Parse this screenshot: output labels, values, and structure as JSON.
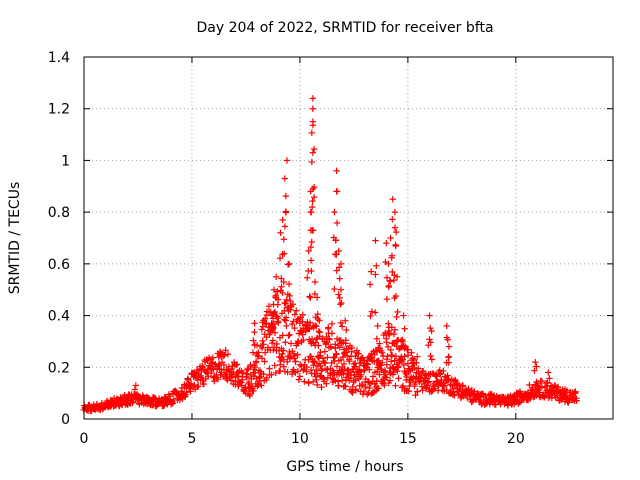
{
  "chart_data": {
    "type": "scatter",
    "title": "Day 204 of 2022, SRMTID for receiver bfta",
    "xlabel": "GPS time / hours",
    "ylabel": "SRMTID / TECUs",
    "xlim": [
      0,
      24.5
    ],
    "ylim": [
      0,
      1.4
    ],
    "xticks": [
      0,
      5,
      10,
      15,
      20
    ],
    "xtick_labels": [
      "0",
      "5",
      "10",
      "15",
      "20"
    ],
    "yticks": [
      0,
      0.2,
      0.4,
      0.6,
      0.8,
      1.0,
      1.2,
      1.4
    ],
    "ytick_labels": [
      "0",
      "0.2",
      "0.4",
      "0.6",
      "0.8",
      "1",
      "1.2",
      "1.4"
    ],
    "grid": true,
    "marker": "plus",
    "series": [
      {
        "name": "SRMTID",
        "color": "#ff0000",
        "profile_x": [
          0,
          0.5,
          1,
          1.5,
          2,
          2.5,
          3,
          3.5,
          4,
          4.5,
          5,
          5.5,
          6,
          6.5,
          7,
          7.5,
          8,
          8.5,
          9,
          9.5,
          10,
          10.5,
          11,
          11.5,
          12,
          12.5,
          13,
          13.5,
          14,
          14.5,
          15,
          15.5,
          16,
          16.5,
          17,
          17.5,
          18,
          18.5,
          19,
          19.5,
          20,
          20.5,
          21,
          21.5,
          22,
          22.5,
          22.8
        ],
        "profile_y": [
          0.04,
          0.04,
          0.05,
          0.06,
          0.07,
          0.07,
          0.06,
          0.06,
          0.07,
          0.09,
          0.13,
          0.16,
          0.18,
          0.2,
          0.16,
          0.12,
          0.18,
          0.25,
          0.3,
          0.28,
          0.24,
          0.22,
          0.2,
          0.22,
          0.18,
          0.16,
          0.14,
          0.16,
          0.22,
          0.2,
          0.16,
          0.14,
          0.13,
          0.14,
          0.12,
          0.1,
          0.08,
          0.07,
          0.07,
          0.06,
          0.07,
          0.09,
          0.11,
          0.1,
          0.09,
          0.08,
          0.08
        ],
        "peaks": [
          {
            "x": 9.4,
            "y": 1.0
          },
          {
            "x": 9.3,
            "y": 0.93
          },
          {
            "x": 9.2,
            "y": 0.77
          },
          {
            "x": 9.1,
            "y": 0.72
          },
          {
            "x": 8.9,
            "y": 0.55
          },
          {
            "x": 9.5,
            "y": 0.6
          },
          {
            "x": 10.6,
            "y": 1.24
          },
          {
            "x": 10.6,
            "y": 1.2
          },
          {
            "x": 10.6,
            "y": 1.15
          },
          {
            "x": 10.6,
            "y": 1.03
          },
          {
            "x": 10.5,
            "y": 0.88
          },
          {
            "x": 10.5,
            "y": 0.8
          },
          {
            "x": 10.4,
            "y": 0.65
          },
          {
            "x": 10.7,
            "y": 0.53
          },
          {
            "x": 10.8,
            "y": 0.47
          },
          {
            "x": 11.7,
            "y": 0.96
          },
          {
            "x": 11.7,
            "y": 0.88
          },
          {
            "x": 11.6,
            "y": 0.8
          },
          {
            "x": 11.8,
            "y": 0.65
          },
          {
            "x": 11.9,
            "y": 0.6
          },
          {
            "x": 11.9,
            "y": 0.5
          },
          {
            "x": 13.5,
            "y": 0.69
          },
          {
            "x": 13.3,
            "y": 0.57
          },
          {
            "x": 14.0,
            "y": 0.68
          },
          {
            "x": 14.2,
            "y": 0.7
          },
          {
            "x": 14.3,
            "y": 0.85
          },
          {
            "x": 14.4,
            "y": 0.8
          },
          {
            "x": 14.4,
            "y": 0.74
          },
          {
            "x": 14.5,
            "y": 0.55
          },
          {
            "x": 14.1,
            "y": 0.6
          },
          {
            "x": 16.0,
            "y": 0.4
          },
          {
            "x": 16.1,
            "y": 0.34
          },
          {
            "x": 16.8,
            "y": 0.36
          },
          {
            "x": 16.9,
            "y": 0.28
          },
          {
            "x": 7.9,
            "y": 0.37
          },
          {
            "x": 8.7,
            "y": 0.4
          },
          {
            "x": 8.8,
            "y": 0.5
          },
          {
            "x": 10.9,
            "y": 0.38
          },
          {
            "x": 12.1,
            "y": 0.38
          },
          {
            "x": 13.6,
            "y": 0.36
          },
          {
            "x": 14.8,
            "y": 0.4
          },
          {
            "x": 20.9,
            "y": 0.22
          },
          {
            "x": 21.5,
            "y": 0.18
          },
          {
            "x": 6.3,
            "y": 0.26
          },
          {
            "x": 2.4,
            "y": 0.13
          }
        ]
      }
    ]
  }
}
